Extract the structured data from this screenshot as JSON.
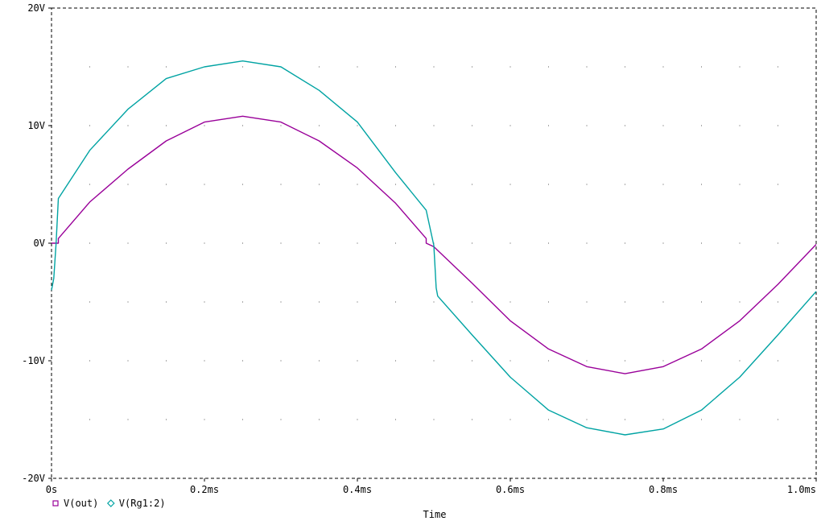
{
  "chart_data": {
    "type": "line",
    "xlabel": "Time",
    "ylabel": "",
    "xlim": [
      0,
      1.0
    ],
    "ylim": [
      -20,
      20
    ],
    "x_ticks": [
      {
        "value": 0,
        "label": "0s"
      },
      {
        "value": 0.2,
        "label": "0.2ms"
      },
      {
        "value": 0.4,
        "label": "0.4ms"
      },
      {
        "value": 0.6,
        "label": "0.6ms"
      },
      {
        "value": 0.8,
        "label": "0.8ms"
      },
      {
        "value": 1.0,
        "label": "1.0ms"
      }
    ],
    "y_ticks": [
      {
        "value": 20,
        "label": "20V"
      },
      {
        "value": 10,
        "label": "10V"
      },
      {
        "value": 0,
        "label": "0V"
      },
      {
        "value": -10,
        "label": "-10V"
      },
      {
        "value": -20,
        "label": "-20V"
      }
    ],
    "grid": true,
    "legend_position": "bottom-left",
    "series": [
      {
        "name": "V(out)",
        "color": "#990099",
        "marker": "square",
        "x": [
          0,
          0.009,
          0.009,
          0.05,
          0.1,
          0.15,
          0.2,
          0.25,
          0.3,
          0.35,
          0.4,
          0.45,
          0.49,
          0.49,
          0.5,
          0.55,
          0.6,
          0.65,
          0.7,
          0.75,
          0.8,
          0.85,
          0.9,
          0.95,
          1.0
        ],
        "y": [
          0,
          0,
          0.4,
          3.5,
          6.3,
          8.7,
          10.3,
          10.8,
          10.3,
          8.7,
          6.4,
          3.4,
          0.4,
          0,
          -0.3,
          -3.4,
          -6.6,
          -9.0,
          -10.5,
          -11.1,
          -10.5,
          -9.0,
          -6.6,
          -3.5,
          -0.1
        ]
      },
      {
        "name": "V(Rg1:2)",
        "color": "#00a3a3",
        "marker": "diamond",
        "x": [
          0,
          0.003,
          0.006,
          0.009,
          0.05,
          0.1,
          0.15,
          0.2,
          0.25,
          0.3,
          0.35,
          0.4,
          0.45,
          0.49,
          0.5,
          0.503,
          0.505,
          0.55,
          0.6,
          0.65,
          0.7,
          0.75,
          0.8,
          0.85,
          0.9,
          0.95,
          1.0
        ],
        "y": [
          -4.0,
          -3.0,
          0,
          3.8,
          7.9,
          11.4,
          14.0,
          15.0,
          15.5,
          15.0,
          13.0,
          10.3,
          6.0,
          2.8,
          -0.2,
          -3.8,
          -4.5,
          -7.8,
          -11.4,
          -14.2,
          -15.7,
          -16.3,
          -15.8,
          -14.2,
          -11.4,
          -7.8,
          -4.1
        ]
      }
    ]
  }
}
